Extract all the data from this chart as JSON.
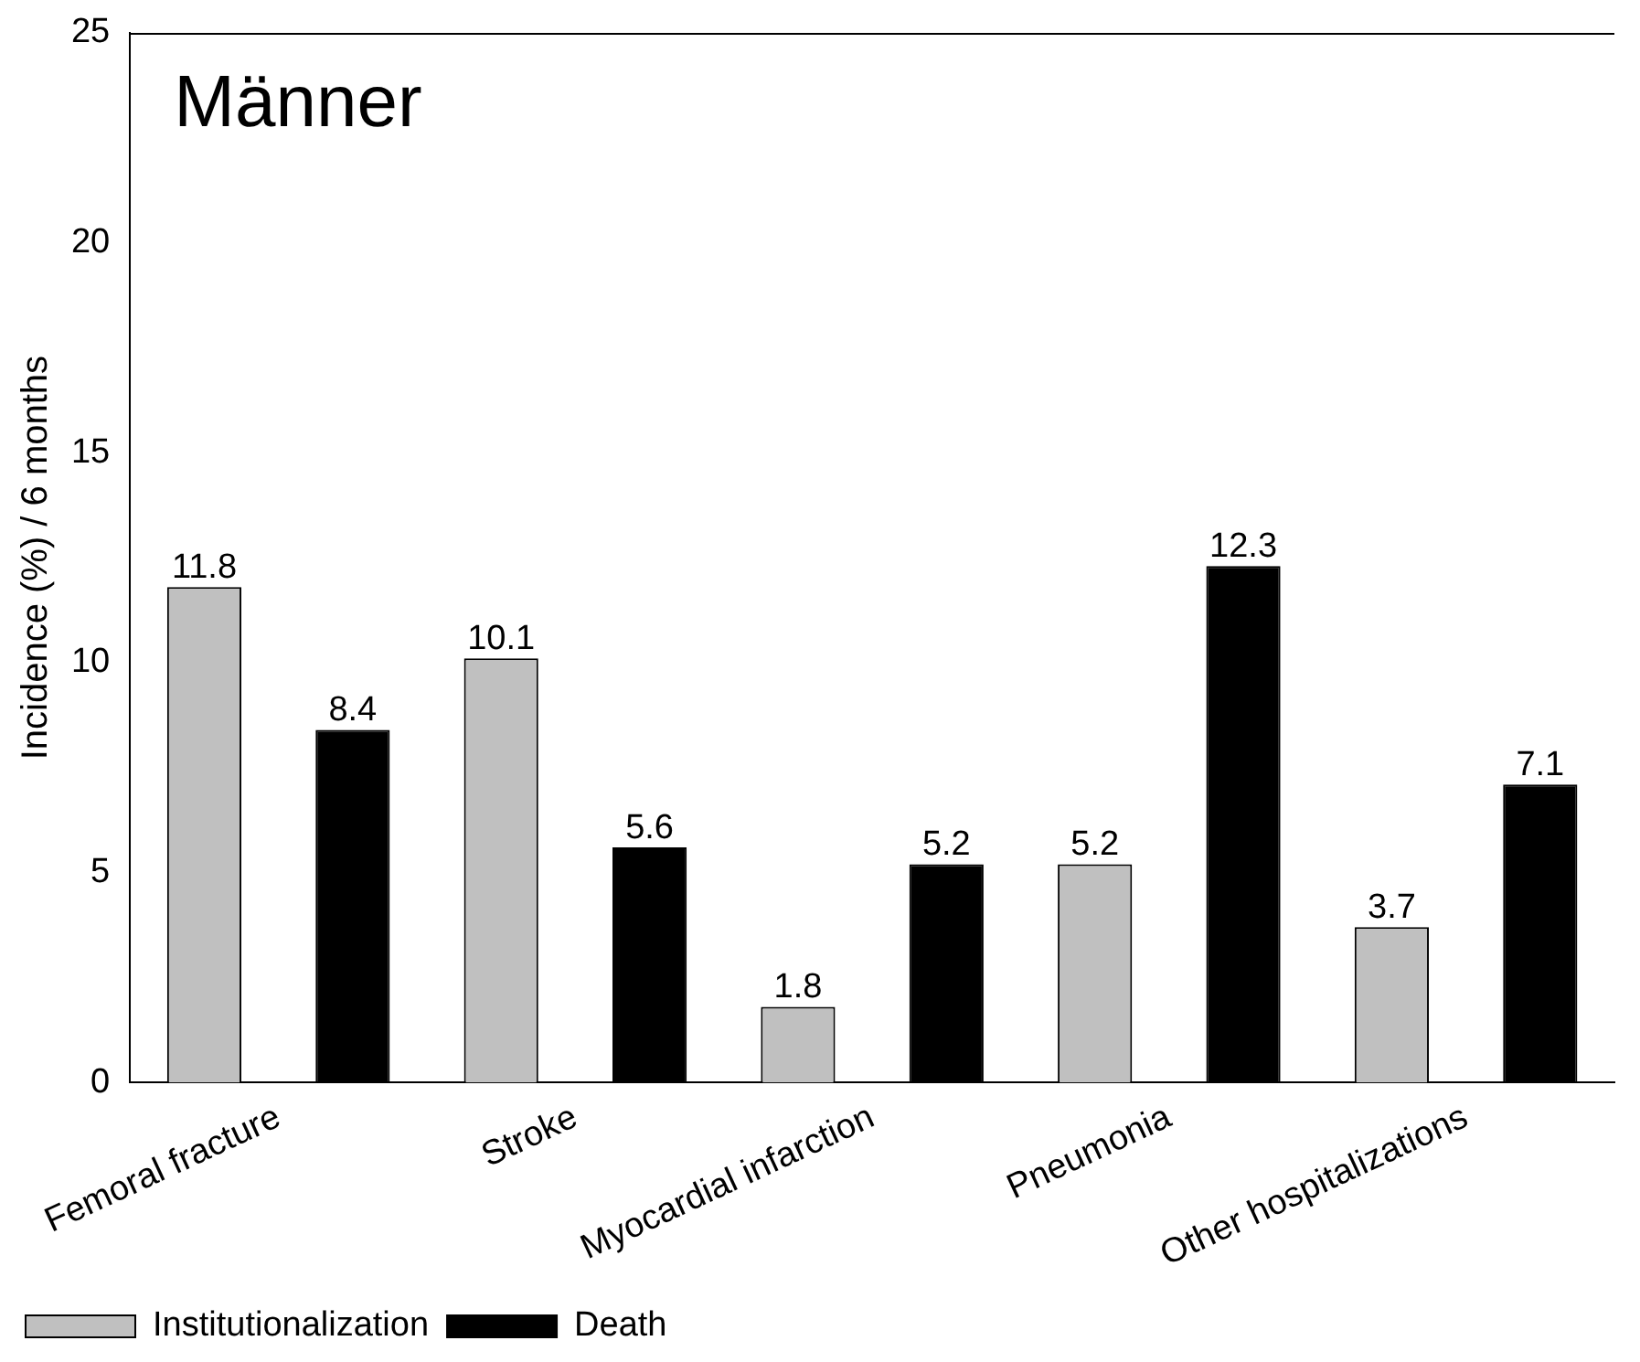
{
  "chart_data": {
    "type": "bar",
    "title": "Männer",
    "ylabel": "Incidence (%) / 6 months",
    "categories": [
      "Femoral fracture",
      "Stroke",
      "Myocardial infarction",
      "Pneumonia",
      "Other hospitalizations"
    ],
    "series": [
      {
        "name": "Institutionalization",
        "color": "#c0c0c0",
        "values": [
          11.8,
          10.1,
          1.8,
          5.2,
          3.7
        ]
      },
      {
        "name": "Death",
        "color": "#000000",
        "values": [
          8.4,
          5.6,
          5.2,
          12.3,
          7.1
        ]
      }
    ],
    "ylim": [
      0,
      25
    ],
    "yticks": [
      0,
      5,
      10,
      15,
      20,
      25
    ],
    "grid": false,
    "legend": "bottom left",
    "data_labels": true
  }
}
